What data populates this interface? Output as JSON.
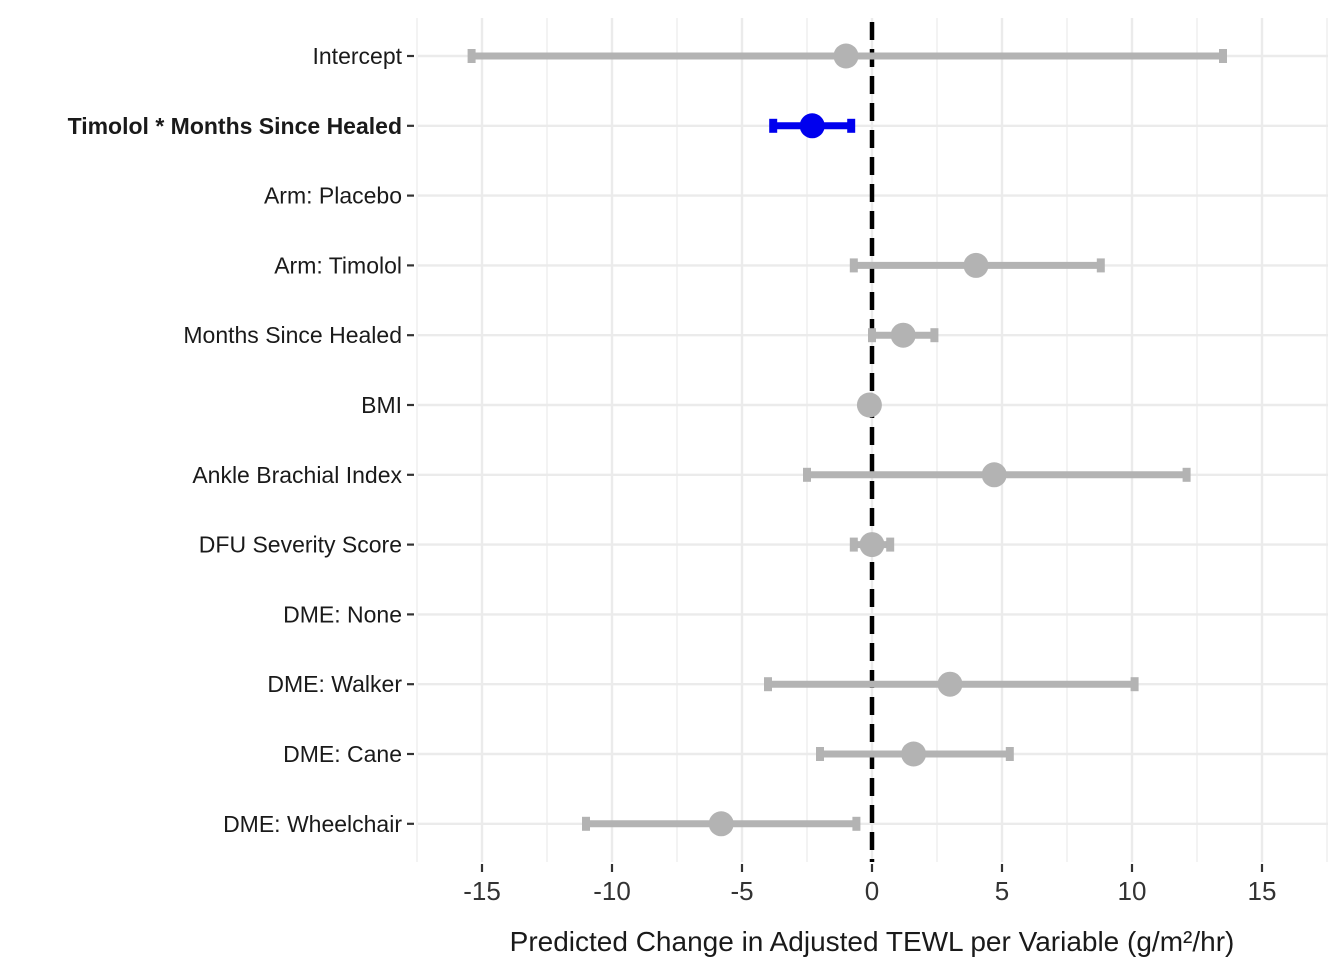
{
  "chart_data": {
    "type": "forest",
    "xlabel": "Predicted Change in Adjusted TEWL per Variable (g/m²/hr)",
    "ylabel": "",
    "xlim": [
      -17.5,
      17.5
    ],
    "xticks": [
      -15,
      -10,
      -5,
      0,
      5,
      10,
      15
    ],
    "xtick_labels": [
      "-15",
      "-10",
      "-5",
      "0",
      "5",
      "10",
      "15"
    ],
    "reference_line_x": 0,
    "grid": true,
    "colors": {
      "significant": "#0000ee",
      "default": "#b3b3b3",
      "reference_line": "#000000",
      "grid": "#ebebeb"
    },
    "rows": [
      {
        "label": "Intercept",
        "estimate": -1.0,
        "low": -15.4,
        "high": 13.5,
        "highlight": false
      },
      {
        "label": "Timolol * Months Since Healed",
        "estimate": -2.3,
        "low": -3.8,
        "high": -0.8,
        "highlight": true
      },
      {
        "label": "Arm: Placebo",
        "estimate": null,
        "low": null,
        "high": null,
        "highlight": false
      },
      {
        "label": "Arm: Timolol",
        "estimate": 4.0,
        "low": -0.7,
        "high": 8.8,
        "highlight": false
      },
      {
        "label": "Months Since Healed",
        "estimate": 1.2,
        "low": 0.0,
        "high": 2.4,
        "highlight": false
      },
      {
        "label": "BMI",
        "estimate": -0.1,
        "low": -0.2,
        "high": 0.1,
        "highlight": false
      },
      {
        "label": "Ankle Brachial Index",
        "estimate": 4.7,
        "low": -2.5,
        "high": 12.1,
        "highlight": false
      },
      {
        "label": "DFU Severity Score",
        "estimate": 0.0,
        "low": -0.7,
        "high": 0.7,
        "highlight": false
      },
      {
        "label": "DME: None",
        "estimate": null,
        "low": null,
        "high": null,
        "highlight": false
      },
      {
        "label": "DME: Walker",
        "estimate": 3.0,
        "low": -4.0,
        "high": 10.1,
        "highlight": false
      },
      {
        "label": "DME: Cane",
        "estimate": 1.6,
        "low": -2.0,
        "high": 5.3,
        "highlight": false
      },
      {
        "label": "DME: Wheelchair",
        "estimate": -5.8,
        "low": -11.0,
        "high": -0.6,
        "highlight": false
      }
    ]
  }
}
